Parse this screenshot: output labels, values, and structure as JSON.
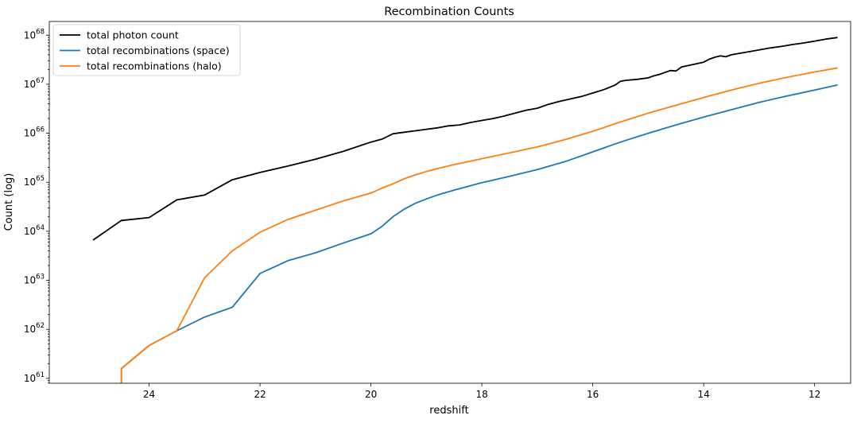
{
  "chart_data": {
    "type": "line",
    "title": "Recombination Counts",
    "xlabel": "redshift",
    "ylabel": "Count (log)",
    "xlim": [
      25.8,
      11.35
    ],
    "xticks": [
      24,
      22,
      20,
      18,
      16,
      14,
      12
    ],
    "ylog": true,
    "yticks": [
      {
        "value": 61,
        "base": "10",
        "exp": "61"
      },
      {
        "value": 62,
        "base": "10",
        "exp": "62"
      },
      {
        "value": 63,
        "base": "10",
        "exp": "63"
      },
      {
        "value": 64,
        "base": "10",
        "exp": "64"
      },
      {
        "value": 65,
        "base": "10",
        "exp": "65"
      },
      {
        "value": 66,
        "base": "10",
        "exp": "66"
      },
      {
        "value": 67,
        "base": "10",
        "exp": "67"
      },
      {
        "value": 68,
        "base": "10",
        "exp": "68"
      }
    ],
    "ylim_log10": [
      60.9,
      68.28
    ],
    "grid": false,
    "legend_position": "upper-left",
    "series": [
      {
        "name": "total photon count",
        "color": "#000000",
        "x": [
          25,
          24.5,
          24,
          23.5,
          23,
          22.5,
          22,
          21.5,
          21,
          20.5,
          20,
          19.8,
          19.6,
          19.4,
          19.2,
          19,
          18.8,
          18.6,
          18.4,
          18.2,
          18,
          17.8,
          17.6,
          17.4,
          17.2,
          17,
          16.8,
          16.6,
          16.4,
          16.2,
          16,
          15.8,
          15.6,
          15.5,
          15.4,
          15.2,
          15,
          14.9,
          14.8,
          14.6,
          14.5,
          14.4,
          14.2,
          14,
          13.9,
          13.8,
          13.7,
          13.6,
          13.5,
          13.2,
          13,
          12.8,
          12.6,
          12.4,
          12.2,
          12,
          11.8,
          11.6
        ],
        "y_log10": [
          63.83,
          64.22,
          64.28,
          64.64,
          64.74,
          65.05,
          65.2,
          65.33,
          65.47,
          65.63,
          65.82,
          65.88,
          65.99,
          66.02,
          66.05,
          66.08,
          66.11,
          66.15,
          66.17,
          66.22,
          66.26,
          66.3,
          66.35,
          66.41,
          66.47,
          66.51,
          66.59,
          66.65,
          66.7,
          66.75,
          66.82,
          66.89,
          66.98,
          67.06,
          67.08,
          67.1,
          67.13,
          67.17,
          67.2,
          67.28,
          67.27,
          67.35,
          67.4,
          67.45,
          67.51,
          67.55,
          67.58,
          67.56,
          67.6,
          67.66,
          67.7,
          67.74,
          67.77,
          67.81,
          67.84,
          67.88,
          67.92,
          67.95
        ]
      },
      {
        "name": "total recombinations (space)",
        "color": "#1f77b4",
        "x": [
          24.5,
          24.5,
          24,
          23.5,
          23,
          22.5,
          22,
          21.5,
          21,
          20.5,
          20,
          19.8,
          19.6,
          19.4,
          19.2,
          19,
          18.8,
          18.5,
          18,
          17.5,
          17,
          16.5,
          16,
          15.5,
          15,
          14.5,
          14,
          13.5,
          13,
          12.5,
          12,
          11.6
        ],
        "y_log10": [
          60.9,
          61.2,
          61.67,
          61.97,
          62.25,
          62.45,
          63.14,
          63.4,
          63.56,
          63.76,
          63.95,
          64.1,
          64.3,
          64.45,
          64.57,
          64.66,
          64.74,
          64.84,
          64.99,
          65.12,
          65.26,
          65.42,
          65.62,
          65.82,
          66.0,
          66.17,
          66.33,
          66.48,
          66.63,
          66.76,
          66.88,
          66.98
        ]
      },
      {
        "name": "total recombinations (halo)",
        "color": "#ff7f0e",
        "x": [
          24.5,
          24.5,
          24,
          23.5,
          23,
          22.5,
          22,
          21.5,
          21,
          20.5,
          20,
          19.8,
          19.6,
          19.4,
          19.2,
          19,
          18.8,
          18.5,
          18,
          17.5,
          17,
          16.5,
          16,
          15.5,
          15,
          14.5,
          14,
          13.5,
          13,
          12.5,
          12,
          11.6
        ],
        "y_log10": [
          60.9,
          61.2,
          61.67,
          61.97,
          63.05,
          63.6,
          63.98,
          64.24,
          64.43,
          64.62,
          64.78,
          64.88,
          64.97,
          65.07,
          65.15,
          65.22,
          65.28,
          65.36,
          65.48,
          65.6,
          65.72,
          65.87,
          66.04,
          66.23,
          66.41,
          66.57,
          66.73,
          66.88,
          67.02,
          67.14,
          67.25,
          67.33
        ]
      }
    ]
  }
}
